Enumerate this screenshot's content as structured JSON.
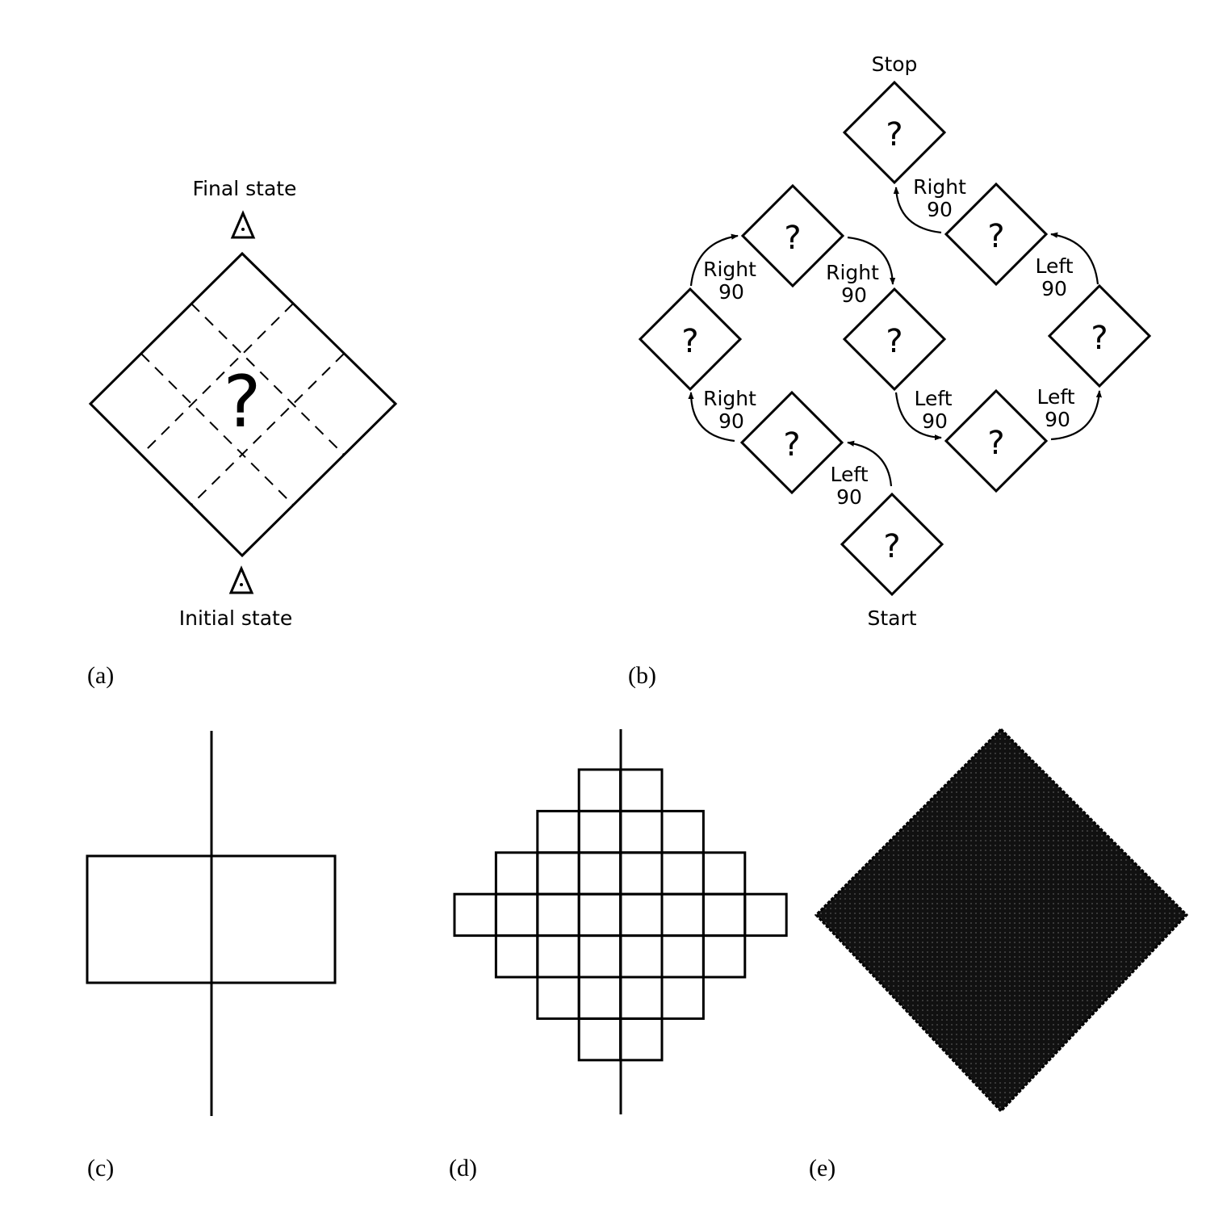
{
  "panel_a": {
    "panel_label": "(a)",
    "final_label": "Final state",
    "initial_label": "Initial state",
    "center_symbol": "?"
  },
  "panel_b": {
    "panel_label": "(b)",
    "start_label": "Start",
    "stop_label": "Stop",
    "tile_symbol": "?",
    "turns": [
      {
        "dir": "Left",
        "angle": "90"
      },
      {
        "dir": "Right",
        "angle": "90"
      },
      {
        "dir": "Right",
        "angle": "90"
      },
      {
        "dir": "Right",
        "angle": "90"
      },
      {
        "dir": "Left",
        "angle": "90"
      },
      {
        "dir": "Left",
        "angle": "90"
      },
      {
        "dir": "Left",
        "angle": "90"
      },
      {
        "dir": "Right",
        "angle": "90"
      }
    ]
  },
  "panel_c": {
    "panel_label": "(c)"
  },
  "panel_d": {
    "panel_label": "(d)"
  },
  "panel_e": {
    "panel_label": "(e)"
  }
}
